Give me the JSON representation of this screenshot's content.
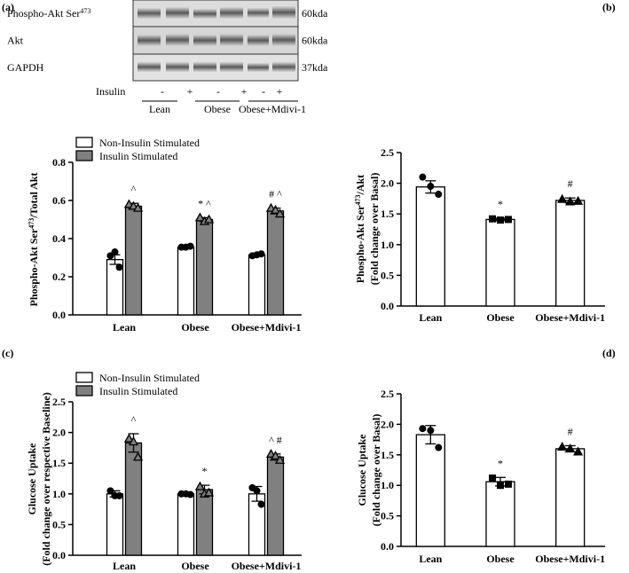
{
  "blot": {
    "panel_label": "(a)",
    "rows": [
      {
        "label": [
          "Phospho-Akt Ser",
          "473"
        ],
        "size": "60kda"
      },
      {
        "label": [
          "Akt"
        ],
        "size": "60kda"
      },
      {
        "label": [
          "GAPDH"
        ],
        "size": "37kda"
      }
    ],
    "treatment_label": "Insulin",
    "lanes": [
      "-",
      "+",
      "-",
      "+",
      "-",
      "+"
    ],
    "groups": [
      "Lean",
      "Obese",
      "Obese+Mdivi-1"
    ]
  },
  "chart_data": [
    {
      "type": "bar",
      "ylabel": [
        [
          "Phospho-Akt Ser",
          "473",
          "/Total Akt"
        ]
      ],
      "categories": [
        "Lean",
        "Obese",
        "Obese+Mdivi-1"
      ],
      "ylim": [
        0,
        0.8
      ],
      "yticks": [
        {
          "value": 0,
          "label": "0.0"
        },
        {
          "value": 0.2,
          "label": "0.2"
        },
        {
          "value": 0.4,
          "label": "0.4"
        },
        {
          "value": 0.6,
          "label": "0.6"
        },
        {
          "value": 0.8,
          "label": "0.8"
        }
      ],
      "series": [
        {
          "name": "Non-Insulin Stimulated",
          "color": "#ffffff",
          "values": [
            0.29,
            0.355,
            0.315
          ],
          "errors": [
            0.025,
            0.005,
            0.005
          ],
          "points": [
            [
              0.31,
              0.33,
              0.25
            ],
            [
              0.355,
              0.355,
              0.36
            ],
            [
              0.31,
              0.315,
              0.32
            ]
          ],
          "markers": [
            "circle",
            "circle",
            "circle"
          ],
          "marker_fill": "#000000",
          "annotations": [
            null,
            null,
            null
          ]
        },
        {
          "name": "Insulin Stimulated",
          "color": "#808080",
          "values": [
            0.57,
            0.5,
            0.545
          ],
          "errors": [
            0.015,
            0.01,
            0.015
          ],
          "points": [
            [
              0.58,
              0.57,
              0.56
            ],
            [
              0.51,
              0.49,
              0.5
            ],
            [
              0.56,
              0.55,
              0.53
            ]
          ],
          "markers": [
            "triangle",
            "triangle",
            "triangle"
          ],
          "marker_fill": "#808080",
          "annotations": [
            "^",
            "* ^",
            "# ^"
          ]
        }
      ]
    },
    {
      "type": "bar",
      "panel_label": "(b)",
      "ylabel": [
        [
          "Phospho-Akt Ser",
          "473",
          "/Akt"
        ],
        [
          "(Fold change over Basal)"
        ]
      ],
      "categories": [
        "Lean",
        "Obese",
        "Obese+Mdivi-1"
      ],
      "ylim": [
        0,
        2.5
      ],
      "yticks": [
        {
          "value": 0,
          "label": "0.0"
        },
        {
          "value": 0.5,
          "label": "0.5"
        },
        {
          "value": 1,
          "label": "1.0"
        },
        {
          "value": 1.5,
          "label": "1.5"
        },
        {
          "value": 2,
          "label": "2.0"
        },
        {
          "value": 2.5,
          "label": "2.5"
        }
      ],
      "series": [
        {
          "color": "#ffffff",
          "values": [
            1.94,
            1.41,
            1.72
          ],
          "errors": [
            0.1,
            0.02,
            0.04
          ],
          "points": [
            [
              2.1,
              1.95,
              1.82
            ],
            [
              1.42,
              1.4,
              1.41
            ],
            [
              1.74,
              1.7,
              1.71
            ]
          ],
          "markers": [
            "circle",
            "square",
            "triangle"
          ],
          "marker_fill": "#000000",
          "annotations": [
            null,
            "*",
            "#"
          ]
        }
      ]
    },
    {
      "type": "bar",
      "panel_label": "(c)",
      "ylabel": [
        [
          "Glucose Uptake"
        ],
        [
          "(Fold change over respective Baseline)"
        ]
      ],
      "categories": [
        "Lean",
        "Obese",
        "Obese+Mdivi-1"
      ],
      "ylim": [
        0,
        2.5
      ],
      "yticks": [
        {
          "value": 0,
          "label": "0.0"
        },
        {
          "value": 0.5,
          "label": "0.5"
        },
        {
          "value": 1,
          "label": "1.0"
        },
        {
          "value": 1.5,
          "label": "1.5"
        },
        {
          "value": 2,
          "label": "2.0"
        },
        {
          "value": 2.5,
          "label": "2.5"
        }
      ],
      "series": [
        {
          "name": "Non-Insulin Stimulated",
          "color": "#ffffff",
          "values": [
            1.0,
            1.0,
            1.0
          ],
          "errors": [
            0.05,
            0.01,
            0.12
          ],
          "points": [
            [
              1.05,
              0.97,
              0.97
            ],
            [
              1.0,
              1.0,
              0.99
            ],
            [
              1.1,
              1.05,
              0.83
            ]
          ],
          "markers": [
            "circle",
            "circle",
            "circle"
          ],
          "marker_fill": "#000000",
          "annotations": [
            null,
            null,
            null
          ]
        },
        {
          "name": "Insulin Stimulated",
          "color": "#808080",
          "values": [
            1.83,
            1.07,
            1.6
          ],
          "errors": [
            0.15,
            0.07,
            0.05
          ],
          "points": [
            [
              1.9,
              1.85,
              1.6
            ],
            [
              1.12,
              1.0,
              1.02
            ],
            [
              1.65,
              1.62,
              1.55
            ]
          ],
          "markers": [
            "triangle",
            "triangle",
            "triangle"
          ],
          "marker_fill": "#808080",
          "annotations": [
            "^",
            "*",
            "^ #"
          ]
        }
      ]
    },
    {
      "type": "bar",
      "panel_label": "(d)",
      "ylabel": [
        [
          "Glucose Uptake"
        ],
        [
          "(Fold change over Basal)"
        ]
      ],
      "categories": [
        "Lean",
        "Obese",
        "Obese+Mdivi-1"
      ],
      "ylim": [
        0,
        2.5
      ],
      "yticks": [
        {
          "value": 0,
          "label": "0.0"
        },
        {
          "value": 0.5,
          "label": "0.5"
        },
        {
          "value": 1,
          "label": "1.0"
        },
        {
          "value": 1.5,
          "label": "1.5"
        },
        {
          "value": 2,
          "label": "2.0"
        },
        {
          "value": 2.5,
          "label": "2.5"
        }
      ],
      "series": [
        {
          "color": "#ffffff",
          "values": [
            1.83,
            1.06,
            1.6
          ],
          "errors": [
            0.15,
            0.07,
            0.05
          ],
          "points": [
            [
              1.93,
              1.9,
              1.62
            ],
            [
              1.12,
              1.0,
              1.02
            ],
            [
              1.63,
              1.6,
              1.55
            ]
          ],
          "markers": [
            "circle",
            "square",
            "triangle"
          ],
          "marker_fill": "#000000",
          "annotations": [
            null,
            "*",
            "#"
          ]
        }
      ]
    }
  ]
}
